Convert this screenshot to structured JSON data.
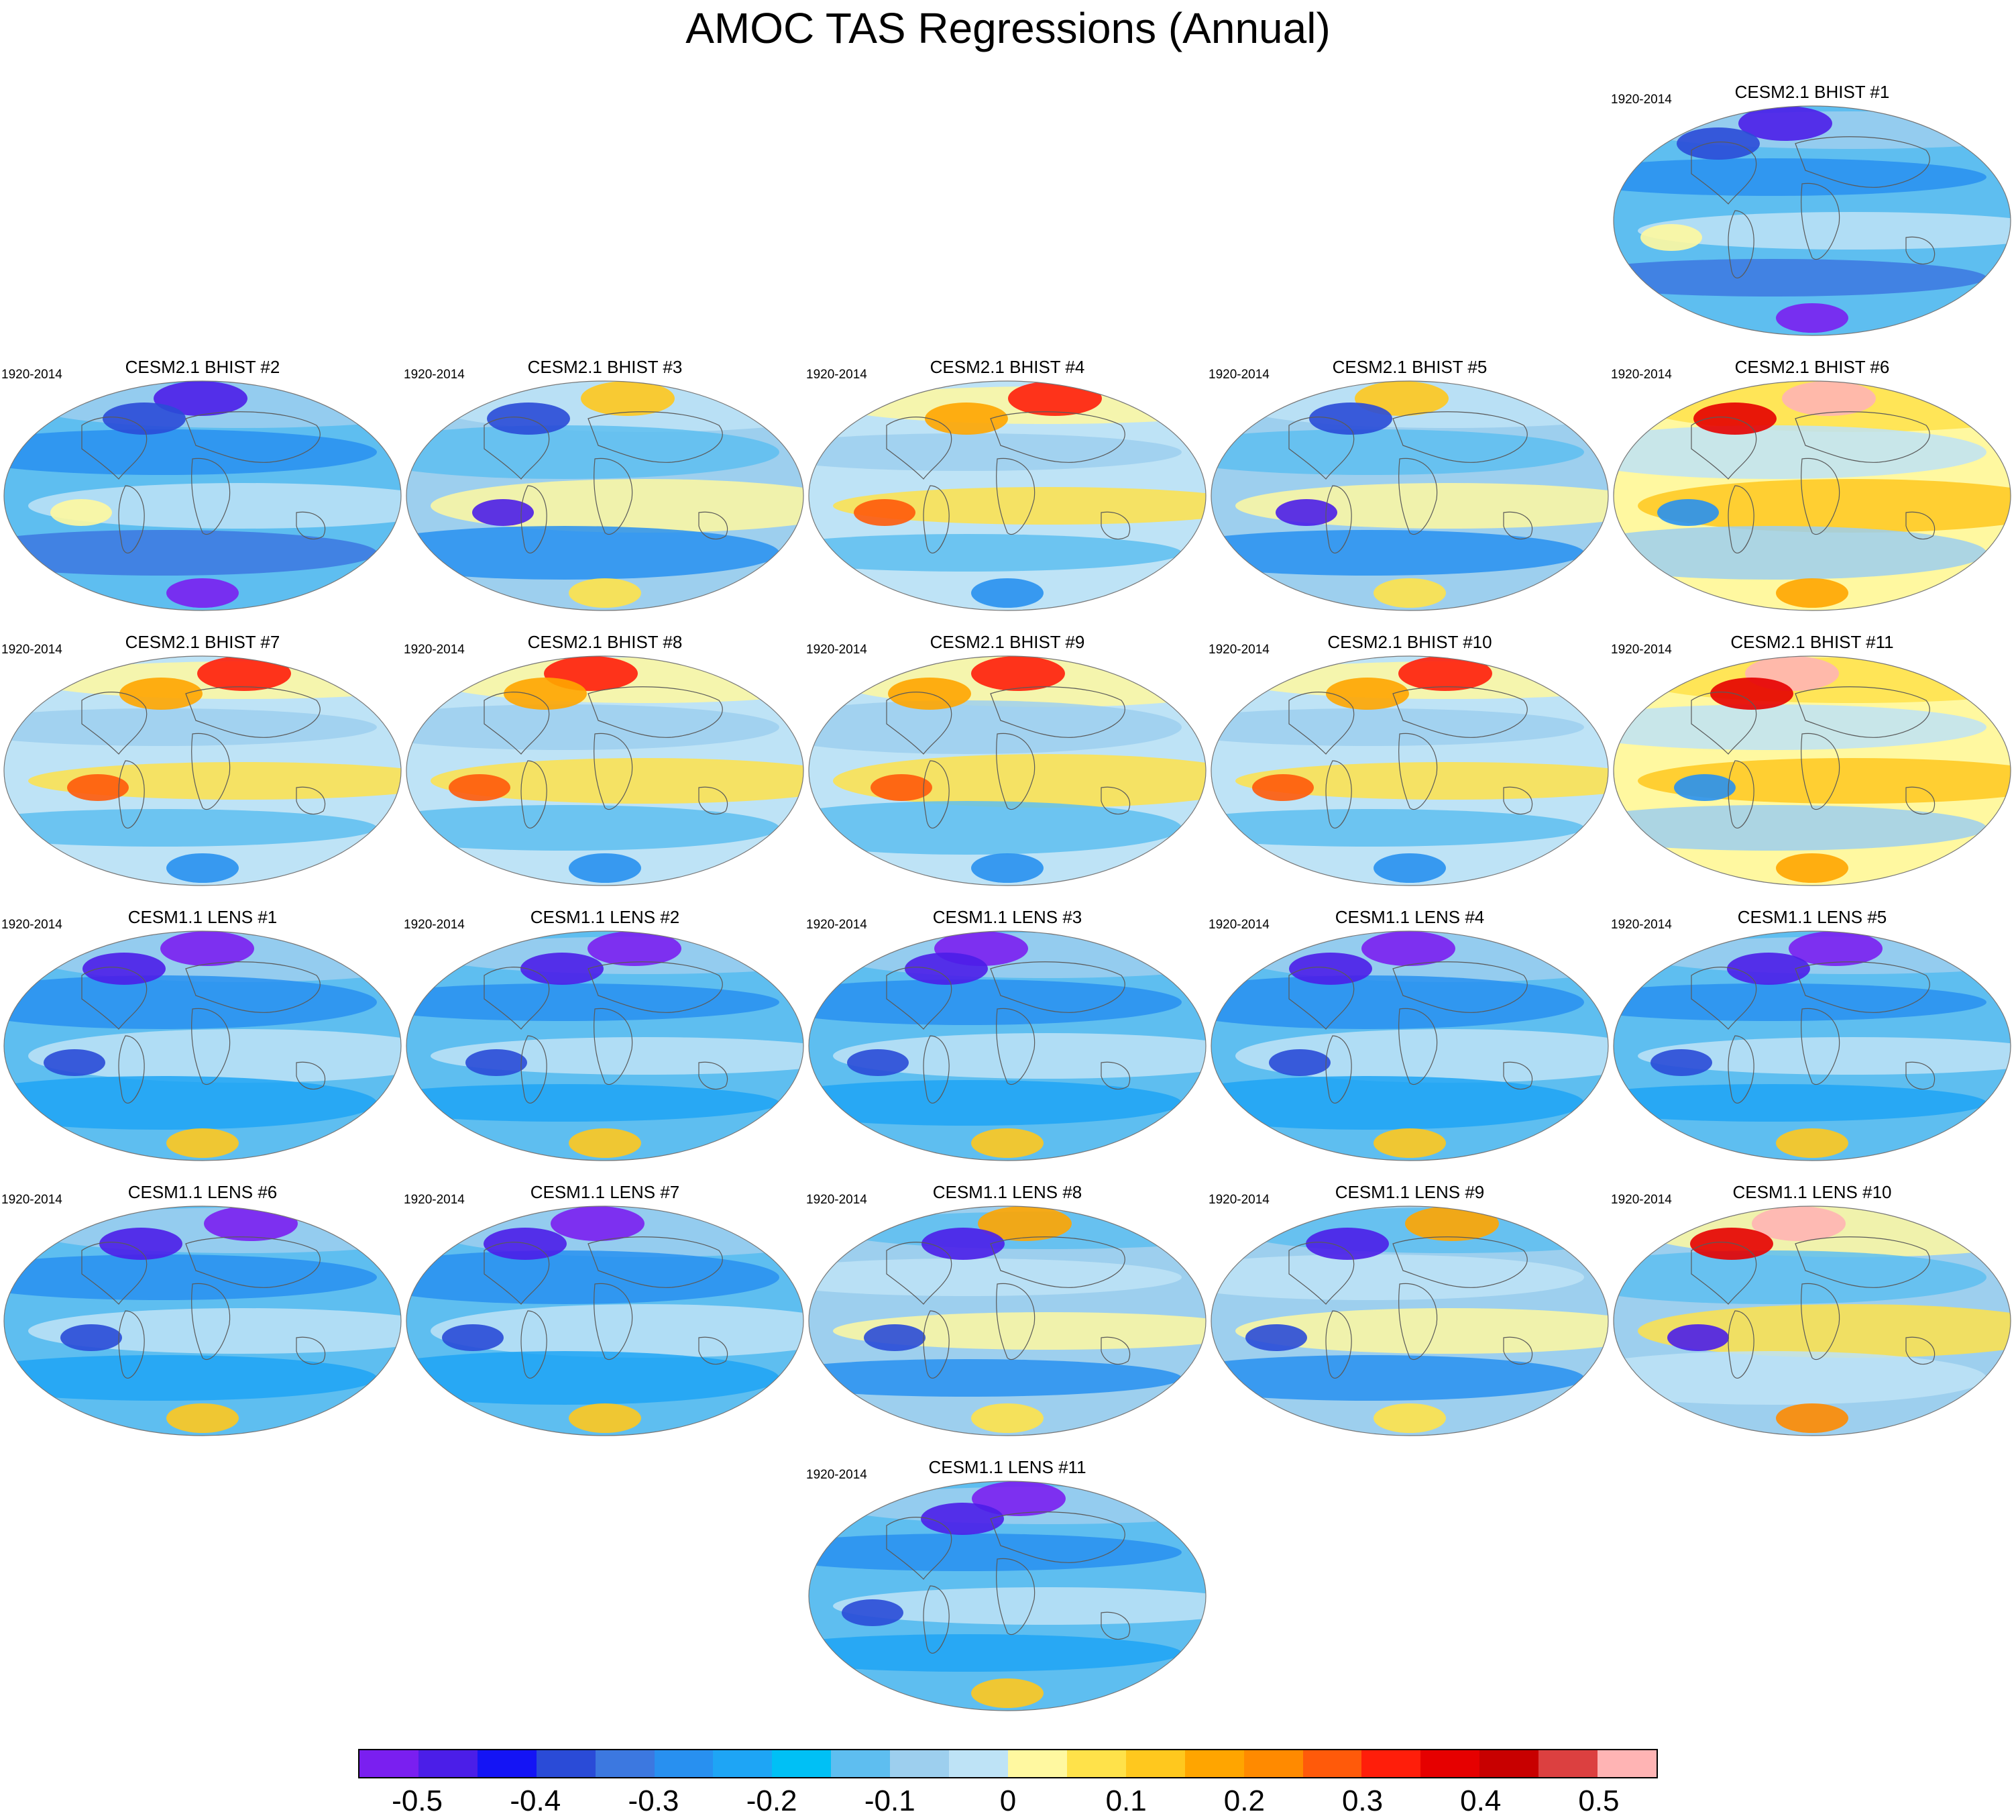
{
  "title": "AMOC TAS Regressions (Annual)",
  "period": "1920-2014",
  "colorbar": {
    "colors": [
      "#7a1ff0",
      "#4b1ee8",
      "#1414f5",
      "#2a4bd7",
      "#3c78e0",
      "#2890f0",
      "#1ea5f5",
      "#00c0f5",
      "#5ebef0",
      "#9dcfee",
      "#bee3f6",
      "#fff8a0",
      "#ffe24a",
      "#ffc81e",
      "#ffa500",
      "#ff8a00",
      "#ff5a0a",
      "#ff1e0a",
      "#e60000",
      "#c80000",
      "#dc4040",
      "#ffb4b4"
    ],
    "labels": [
      "-0.5",
      "-0.4",
      "-0.3",
      "-0.2",
      "-0.1",
      "0",
      "0.1",
      "0.2",
      "0.3",
      "0.4",
      "0.5"
    ]
  },
  "panels": [
    {
      "title": "CESM2.1 BHIST #1",
      "row": 0,
      "col": 4,
      "style": "cold"
    },
    {
      "title": "CESM2.1 BHIST #2",
      "row": 1,
      "col": 0,
      "style": "cold"
    },
    {
      "title": "CESM2.1 BHIST #3",
      "row": 1,
      "col": 1,
      "style": "mixed"
    },
    {
      "title": "CESM2.1 BHIST #4",
      "row": 1,
      "col": 2,
      "style": "warm"
    },
    {
      "title": "CESM2.1 BHIST #5",
      "row": 1,
      "col": 3,
      "style": "mixed"
    },
    {
      "title": "CESM2.1 BHIST #6",
      "row": 1,
      "col": 4,
      "style": "hot"
    },
    {
      "title": "CESM2.1 BHIST #7",
      "row": 2,
      "col": 0,
      "style": "warm"
    },
    {
      "title": "CESM2.1 BHIST #8",
      "row": 2,
      "col": 1,
      "style": "warm"
    },
    {
      "title": "CESM2.1 BHIST #9",
      "row": 2,
      "col": 2,
      "style": "warm"
    },
    {
      "title": "CESM2.1 BHIST #10",
      "row": 2,
      "col": 3,
      "style": "warm"
    },
    {
      "title": "CESM2.1 BHIST #11",
      "row": 2,
      "col": 4,
      "style": "hot"
    },
    {
      "title": "CESM1.1 LENS #1",
      "row": 3,
      "col": 0,
      "style": "lens"
    },
    {
      "title": "CESM1.1 LENS #2",
      "row": 3,
      "col": 1,
      "style": "lens"
    },
    {
      "title": "CESM1.1 LENS #3",
      "row": 3,
      "col": 2,
      "style": "lens"
    },
    {
      "title": "CESM1.1 LENS #4",
      "row": 3,
      "col": 3,
      "style": "lens"
    },
    {
      "title": "CESM1.1 LENS #5",
      "row": 3,
      "col": 4,
      "style": "lens"
    },
    {
      "title": "CESM1.1 LENS #6",
      "row": 4,
      "col": 0,
      "style": "lens"
    },
    {
      "title": "CESM1.1 LENS #7",
      "row": 4,
      "col": 1,
      "style": "lens"
    },
    {
      "title": "CESM1.1 LENS #8",
      "row": 4,
      "col": 2,
      "style": "lensmix"
    },
    {
      "title": "CESM1.1 LENS #9",
      "row": 4,
      "col": 3,
      "style": "lensmix"
    },
    {
      "title": "CESM1.1 LENS #10",
      "row": 4,
      "col": 4,
      "style": "lenswarm"
    },
    {
      "title": "CESM1.1 LENS #11",
      "row": 5,
      "col": 2,
      "style": "lens"
    }
  ]
}
